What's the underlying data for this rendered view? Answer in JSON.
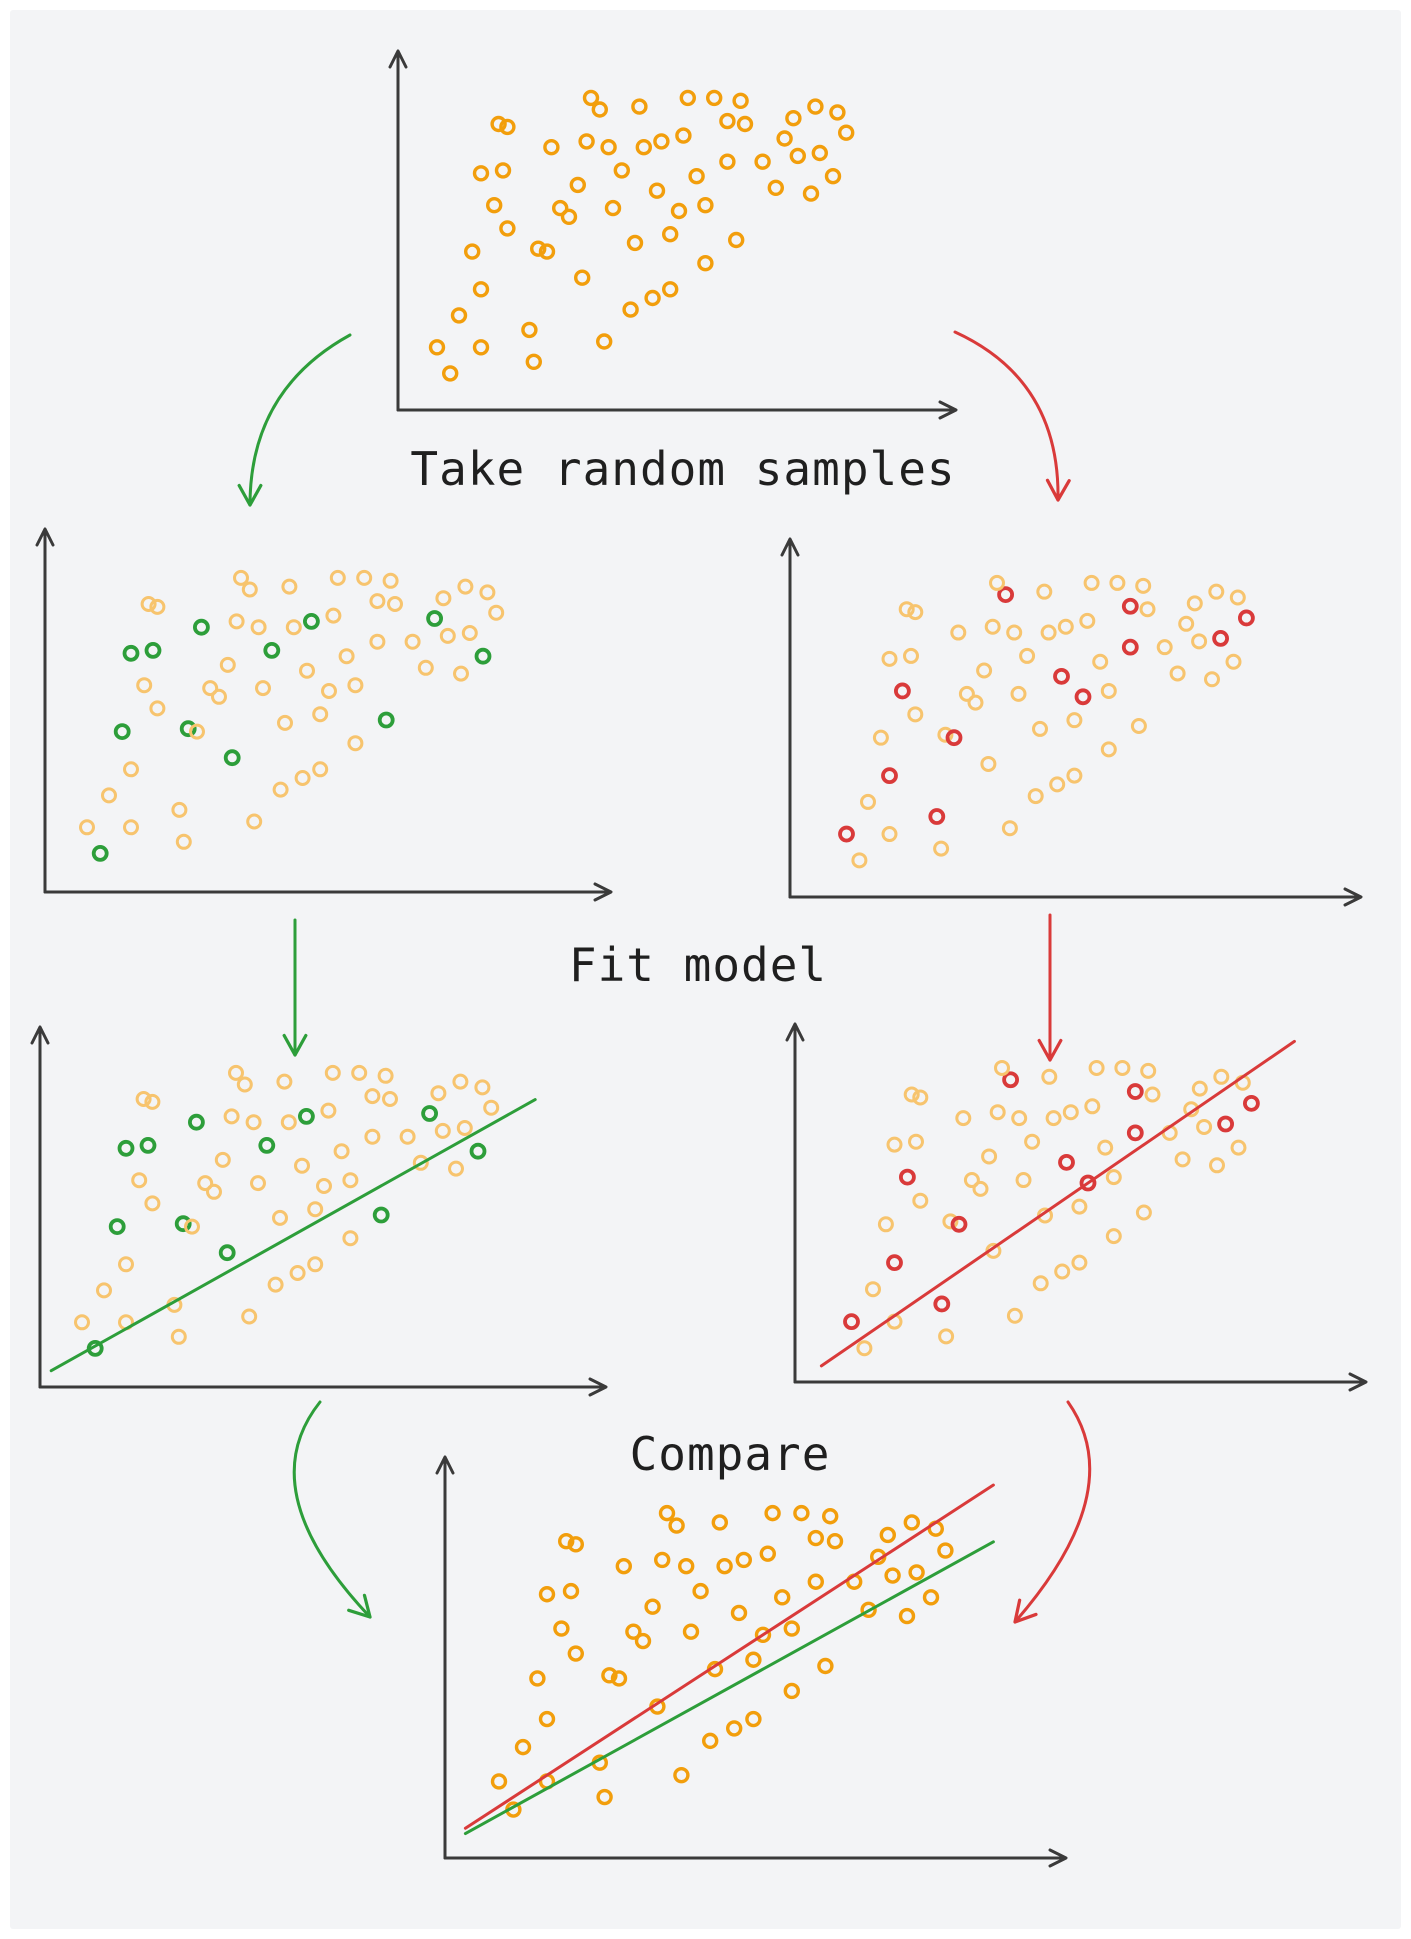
{
  "captions": {
    "step1": "Take random samples",
    "step2": "Fit model",
    "step3": "Compare"
  },
  "colors": {
    "point": "#f29e0c",
    "point_faded": "#f7c46e",
    "green": "#2d9e3a",
    "red": "#d93a3a",
    "axis": "#3a3a3a"
  },
  "chart_data": {
    "type": "scatter",
    "population": [
      [
        0.05,
        0.13
      ],
      [
        0.08,
        0.04
      ],
      [
        0.1,
        0.24
      ],
      [
        0.13,
        0.46
      ],
      [
        0.15,
        0.33
      ],
      [
        0.15,
        0.13
      ],
      [
        0.18,
        0.62
      ],
      [
        0.19,
        0.9
      ],
      [
        0.21,
        0.54
      ],
      [
        0.15,
        0.73
      ],
      [
        0.21,
        0.89
      ],
      [
        0.28,
        0.47
      ],
      [
        0.3,
        0.46
      ],
      [
        0.26,
        0.19
      ],
      [
        0.27,
        0.08
      ],
      [
        0.31,
        0.82
      ],
      [
        0.33,
        0.61
      ],
      [
        0.35,
        0.58
      ],
      [
        0.37,
        0.69
      ],
      [
        0.38,
        0.37
      ],
      [
        0.39,
        0.84
      ],
      [
        0.42,
        0.95
      ],
      [
        0.43,
        0.15
      ],
      [
        0.45,
        0.61
      ],
      [
        0.47,
        0.74
      ],
      [
        0.5,
        0.49
      ],
      [
        0.51,
        0.96
      ],
      [
        0.55,
        0.67
      ],
      [
        0.56,
        0.84
      ],
      [
        0.58,
        0.52
      ],
      [
        0.6,
        0.6
      ],
      [
        0.61,
        0.86
      ],
      [
        0.64,
        0.72
      ],
      [
        0.66,
        0.62
      ],
      [
        0.71,
        0.77
      ],
      [
        0.71,
        0.91
      ],
      [
        0.73,
        0.5
      ],
      [
        0.75,
        0.9
      ],
      [
        0.79,
        0.77
      ],
      [
        0.82,
        0.68
      ],
      [
        0.84,
        0.85
      ],
      [
        0.87,
        0.79
      ],
      [
        0.9,
        0.66
      ],
      [
        0.92,
        0.8
      ],
      [
        0.95,
        0.72
      ],
      [
        0.96,
        0.94
      ],
      [
        0.98,
        0.87
      ],
      [
        0.4,
        0.99
      ],
      [
        0.62,
        0.99
      ],
      [
        0.68,
        0.99
      ],
      [
        0.74,
        0.98
      ],
      [
        0.91,
        0.96
      ],
      [
        0.86,
        0.92
      ],
      [
        0.52,
        0.82
      ],
      [
        0.44,
        0.82
      ],
      [
        0.2,
        0.74
      ],
      [
        0.58,
        0.33
      ],
      [
        0.66,
        0.42
      ],
      [
        0.54,
        0.3
      ],
      [
        0.49,
        0.26
      ]
    ],
    "sample_green": [
      1,
      3,
      9,
      11,
      15,
      19,
      24,
      28,
      36,
      40,
      44,
      55
    ],
    "sample_red": [
      0,
      4,
      6,
      12,
      13,
      21,
      27,
      30,
      34,
      35,
      43,
      46
    ],
    "fit_green": {
      "slope": 0.85,
      "intercept": -0.02
    },
    "fit_red": {
      "slope": 1.0,
      "intercept": 0.0
    },
    "panels": [
      {
        "id": "population",
        "points": "all"
      },
      {
        "id": "sample-green",
        "points": "green-sample"
      },
      {
        "id": "sample-red",
        "points": "red-sample"
      },
      {
        "id": "fit-green",
        "points": "green-sample",
        "line": "green"
      },
      {
        "id": "fit-red",
        "points": "red-sample",
        "line": "red"
      },
      {
        "id": "compare",
        "points": "all",
        "lines": [
          "red",
          "green"
        ]
      }
    ]
  }
}
